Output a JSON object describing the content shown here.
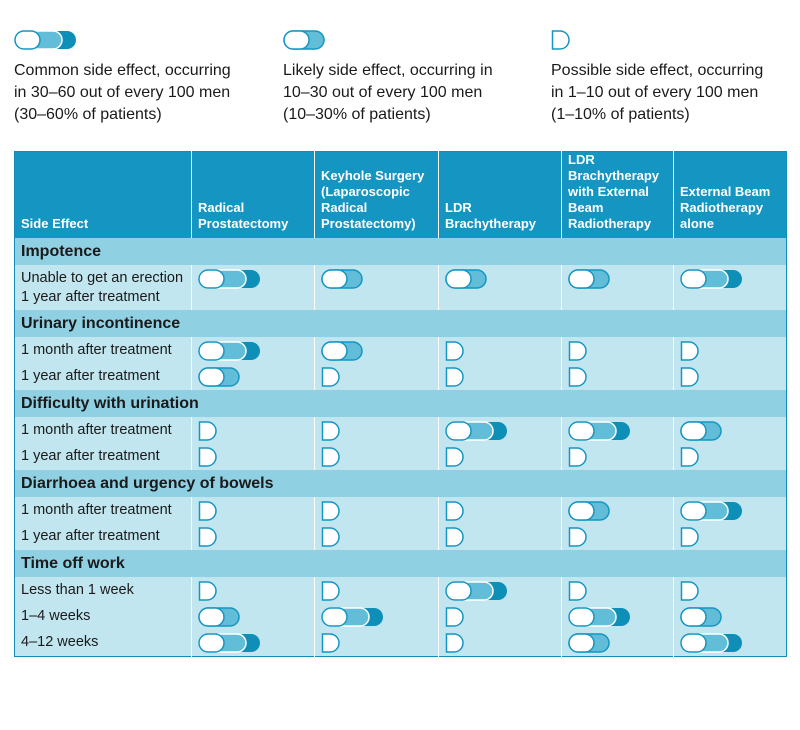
{
  "legend": [
    {
      "level": "common",
      "text": "Common side effect, occurring\nin 30–60 out of every 100 men\n(30–60% of patients)"
    },
    {
      "level": "likely",
      "text": "Likely side effect, occurring in\n10–30 out of every 100 men\n(10–30% of patients)"
    },
    {
      "level": "possible",
      "text": "Possible side effect, occurring\nin 1–10 out of every 100 men\n(1–10% of patients)"
    }
  ],
  "table": {
    "headers": [
      "Side Effect",
      "Radical Prostatectomy",
      "Keyhole Surgery (Laparoscopic Radical Prostatectomy)",
      "LDR Brachytherapy",
      "LDR Brachytherapy with External Beam Radiotherapy",
      "External Beam Radiotherapy alone"
    ],
    "sections": [
      {
        "title": "Impotence",
        "rows": [
          {
            "label": "Unable to get an erection 1 year after treatment",
            "levels": [
              "common",
              "likely",
              "likely",
              "likely",
              "common"
            ]
          }
        ]
      },
      {
        "title": "Urinary incontinence",
        "rows": [
          {
            "label": "1 month after treatment",
            "levels": [
              "common",
              "likely",
              "possible",
              "possible",
              "possible"
            ]
          },
          {
            "label": "1 year after treatment",
            "levels": [
              "likely",
              "possible",
              "possible",
              "possible",
              "possible"
            ]
          }
        ]
      },
      {
        "title": "Difficulty with urination",
        "rows": [
          {
            "label": "1 month after treatment",
            "levels": [
              "possible",
              "possible",
              "common",
              "common",
              "likely"
            ]
          },
          {
            "label": "1 year after treatment",
            "levels": [
              "possible",
              "possible",
              "possible",
              "possible",
              "possible"
            ]
          }
        ]
      },
      {
        "title": "Diarrhoea and urgency of bowels",
        "rows": [
          {
            "label": "1 month after treatment",
            "levels": [
              "possible",
              "possible",
              "possible",
              "likely",
              "common"
            ]
          },
          {
            "label": "1 year after treatment",
            "levels": [
              "possible",
              "possible",
              "possible",
              "possible",
              "possible"
            ]
          }
        ]
      },
      {
        "title": "Time off work",
        "rows": [
          {
            "label": "Less than 1 week",
            "levels": [
              "possible",
              "possible",
              "common",
              "possible",
              "possible"
            ]
          },
          {
            "label": "1–4 weeks",
            "levels": [
              "likely",
              "common",
              "possible",
              "common",
              "likely"
            ]
          },
          {
            "label": "4–12 weeks",
            "levels": [
              "common",
              "possible",
              "possible",
              "likely",
              "common"
            ]
          }
        ]
      }
    ]
  },
  "colors": {
    "header_bg": "#1596c2",
    "section_bg": "#8fd0e3",
    "row_bg": "#c2e6f0",
    "pill_dark": "#0d8fb8",
    "pill_mid": "#62bdd8",
    "pill_outline": "#1596c2"
  }
}
